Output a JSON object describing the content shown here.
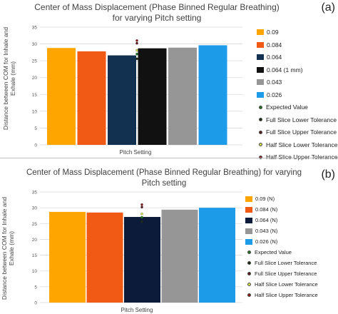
{
  "chart_data": [
    {
      "panel": "(a)",
      "type": "bar",
      "title": "Center of Mass Displacement (Phase Binned Regular Breathing) for varying Pitch setting",
      "xlabel": "Pitch Setting",
      "ylabel": "Distance between COM for Inhale and Exhale (mm)",
      "ylim": [
        0,
        35
      ],
      "yticks": [
        0,
        5,
        10,
        15,
        20,
        25,
        30,
        35
      ],
      "grid": true,
      "legend_position": "right",
      "series": [
        {
          "name": "0.09",
          "value": 28.8,
          "color": "#FFA500"
        },
        {
          "name": "0.084",
          "value": 27.8,
          "color": "#F05A14"
        },
        {
          "name": "0.064",
          "value": 26.6,
          "color": "#12304F"
        },
        {
          "name": "0.064 (1 mm)",
          "value": 28.7,
          "color": "#111111"
        },
        {
          "name": "0.043",
          "value": 28.9,
          "color": "#969696"
        },
        {
          "name": "0.026",
          "value": 29.6,
          "color": "#1C9BE8"
        }
      ],
      "points": [
        {
          "name": "Expected Value",
          "value": 27.0,
          "color": "#1a7a1a"
        },
        {
          "name": "Full Slice Lower Tolerance",
          "value": 25.6,
          "color": "#1b2a10"
        },
        {
          "name": "Full Slice Upper Tolerance",
          "value": 30.2,
          "color": "#5a1a1a"
        },
        {
          "name": "Half Slice Lower Tolerance",
          "value": 28.1,
          "color": "#d8e84a"
        },
        {
          "name": "Half Slice Upper Tolerance",
          "value": 31.0,
          "color": "#8a1a1a"
        }
      ]
    },
    {
      "panel": "(b)",
      "type": "bar",
      "title": "Center of Mass Displacement (Phase Binned Regular Breathing) for varying Pitch setting",
      "xlabel": "Pitch Setting",
      "ylabel": "Distance between COM for Inhale and Exhale (mm)",
      "ylim": [
        0,
        35
      ],
      "yticks": [
        0,
        5,
        10,
        15,
        20,
        25,
        30,
        35
      ],
      "grid": true,
      "legend_position": "right",
      "series": [
        {
          "name": "0.09 (N)",
          "value": 28.7,
          "color": "#FFA500"
        },
        {
          "name": "0.084 (N)",
          "value": 28.5,
          "color": "#F05A14"
        },
        {
          "name": "0.064 (N)",
          "value": 27.1,
          "color": "#0D1B3A"
        },
        {
          "name": "0.043 (N)",
          "value": 29.4,
          "color": "#969696"
        },
        {
          "name": "0.026 (N)",
          "value": 30.0,
          "color": "#1C9BE8"
        }
      ],
      "points": [
        {
          "name": "Expected Value",
          "value": 27.0,
          "color": "#1a7a1a"
        },
        {
          "name": "Full Slice Lower Tolerance",
          "value": 25.6,
          "color": "#1b2a10"
        },
        {
          "name": "Full Slice Upper Tolerance",
          "value": 30.2,
          "color": "#5a1a1a"
        },
        {
          "name": "Half Slice Lower Tolerance",
          "value": 28.1,
          "color": "#d8e84a"
        },
        {
          "name": "Half Slice Upper Tolerance",
          "value": 31.0,
          "color": "#8a1a1a"
        }
      ]
    }
  ],
  "labels": {
    "a": "(a)",
    "b": "(b)"
  }
}
